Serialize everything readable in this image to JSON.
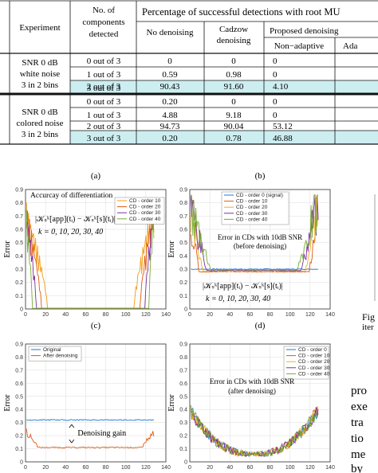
{
  "table": {
    "header": {
      "experiment": "Experiment",
      "components": [
        "No. of",
        "components",
        "detected"
      ],
      "percentage": "Percentage of successful detections with root MU",
      "no_denoising": "No denoising",
      "cadzow": [
        "Cadzow",
        "denoising"
      ],
      "proposed": "Proposed denoising",
      "non_adaptive": "Non−adaptive",
      "adaptive": "Ada"
    },
    "groups": [
      {
        "experiment": [
          "SNR 0 dB",
          "white noise",
          "3 in 2 bins"
        ],
        "rows": [
          {
            "detected": "0 out of 3",
            "no_denoising": "0",
            "cadzow": "0",
            "non_adaptive": "0",
            "highlight": false
          },
          {
            "detected": "1 out of 3",
            "no_denoising": "0.59",
            "cadzow": "0.98",
            "non_adaptive": "0",
            "highlight": false
          },
          {
            "detected": "2 out of 3",
            "no_denoising": "90.43",
            "cadzow": "91.60",
            "non_adaptive": "4.10",
            "highlight": false
          },
          {
            "detected": "3 out of 3",
            "no_denoising": "8.98",
            "cadzow": "7.42",
            "non_adaptive": "95.90",
            "highlight": true
          }
        ]
      },
      {
        "experiment": [
          "SNR 0 dB",
          "colored noise",
          "3 in 2 bins"
        ],
        "rows": [
          {
            "detected": "0 out of 3",
            "no_denoising": "0.20",
            "cadzow": "0",
            "non_adaptive": "0",
            "highlight": false
          },
          {
            "detected": "1 out of 3",
            "no_denoising": "4.88",
            "cadzow": "9.18",
            "non_adaptive": "0",
            "highlight": false
          },
          {
            "detected": "2 out of 3",
            "no_denoising": "94.73",
            "cadzow": "90.04",
            "non_adaptive": "53.12",
            "highlight": false
          },
          {
            "detected": "3 out of 3",
            "no_denoising": "0.20",
            "cadzow": "0.78",
            "non_adaptive": "46.88",
            "highlight": true
          }
        ]
      }
    ],
    "highlight_color": "#cdeef1"
  },
  "panel_labels": [
    "(a)",
    "(b)",
    "(c)",
    "(d)"
  ],
  "chart_data": [
    {
      "type": "line",
      "panel": "(a)",
      "ylabel": "Error",
      "xlim": [
        0,
        140
      ],
      "ylim": [
        0,
        0.9
      ],
      "xticks": [
        "0",
        "20",
        "40",
        "60",
        "80",
        "100",
        "120",
        "140"
      ],
      "yticks": [
        "0",
        "0.1",
        "0.2",
        "0.3",
        "0.4",
        "0.5",
        "0.6",
        "0.7",
        "0.8",
        "0.9"
      ],
      "grid": true,
      "legend_position": "top-right",
      "series": [
        {
          "name": "CD - order 10",
          "color": "#f39c12",
          "edge_end": 22,
          "edge_start": 108
        },
        {
          "name": "CD - order 20",
          "color": "#e05a10",
          "edge_end": 16,
          "edge_start": 114
        },
        {
          "name": "CD - order 30",
          "color": "#7b2fa0",
          "edge_end": 11,
          "edge_start": 119
        },
        {
          "name": "CD - order 40",
          "color": "#77ac30",
          "edge_end": 7,
          "edge_start": 123
        }
      ],
      "annotations": [
        "Accurcay of differentiation",
        "k = 0, 10, 20, 30, 40"
      ]
    },
    {
      "type": "line",
      "panel": "(b)",
      "ylabel": "Error",
      "xlim": [
        0,
        140
      ],
      "ylim": [
        0,
        0.9
      ],
      "xticks": [
        "0",
        "20",
        "40",
        "60",
        "80",
        "100",
        "120",
        "140"
      ],
      "yticks": [
        "0",
        "0.1",
        "0.2",
        "0.3",
        "0.4",
        "0.5",
        "0.6",
        "0.7",
        "0.8",
        "0.9"
      ],
      "grid": true,
      "legend_position": "top",
      "series": [
        {
          "name": "CD - order 0 (signal)",
          "color": "#1f77d4",
          "level": 0.3
        },
        {
          "name": "CD - order 10",
          "color": "#e05a10",
          "level": 0.28
        },
        {
          "name": "CD - order 20",
          "color": "#edb120",
          "level": 0.285
        },
        {
          "name": "CD - order 30",
          "color": "#7b2fa0",
          "level": 0.29
        },
        {
          "name": "CD - order 40",
          "color": "#77ac30",
          "level": 0.295
        }
      ],
      "annotations": [
        "Error in CDs with 10dB SNR",
        "(before denoising)",
        "k = 0, 10, 20, 30, 40"
      ]
    },
    {
      "type": "line",
      "panel": "(c)",
      "ylabel": "Error",
      "xlim": [
        0,
        140
      ],
      "ylim": [
        0,
        0.9
      ],
      "xticks": [
        "0",
        "20",
        "40",
        "60",
        "80",
        "100",
        "120",
        "140"
      ],
      "yticks": [
        "0",
        "0.1",
        "0.2",
        "0.3",
        "0.4",
        "0.5",
        "0.6",
        "0.7",
        "0.8",
        "0.9"
      ],
      "grid": true,
      "legend_position": "top-left",
      "series": [
        {
          "name": "Original",
          "color": "#1f77d4",
          "level": 0.32
        },
        {
          "name": "After denoising",
          "color": "#e05a10",
          "level": 0.11
        }
      ],
      "annotations": [
        "Denoising gain"
      ]
    },
    {
      "type": "line",
      "panel": "(d)",
      "ylabel": "Error",
      "xlim": [
        0,
        140
      ],
      "ylim": [
        0,
        0.9
      ],
      "xticks": [
        "0",
        "20",
        "40",
        "60",
        "80",
        "100",
        "120",
        "140"
      ],
      "yticks": [
        "0",
        "0.1",
        "0.2",
        "0.3",
        "0.4",
        "0.5",
        "0.6",
        "0.7",
        "0.8",
        "0.9"
      ],
      "grid": true,
      "legend_position": "top-right",
      "series": [
        {
          "name": "CD - order 0",
          "color": "#1f77d4"
        },
        {
          "name": "CD - order 10",
          "color": "#e05a10"
        },
        {
          "name": "CD - order 20",
          "color": "#edb120"
        },
        {
          "name": "CD - order 30",
          "color": "#7b2fa0"
        },
        {
          "name": "CD - order 40",
          "color": "#77ac30"
        }
      ],
      "annotations": [
        "Error in CDs with 10dB SNR",
        "(after denoising)"
      ]
    }
  ],
  "side": {
    "fig_fragment": [
      "Fig",
      "iter"
    ],
    "body_fragments": [
      "pro",
      "exe",
      "tra",
      "tio",
      "me",
      "by"
    ]
  }
}
